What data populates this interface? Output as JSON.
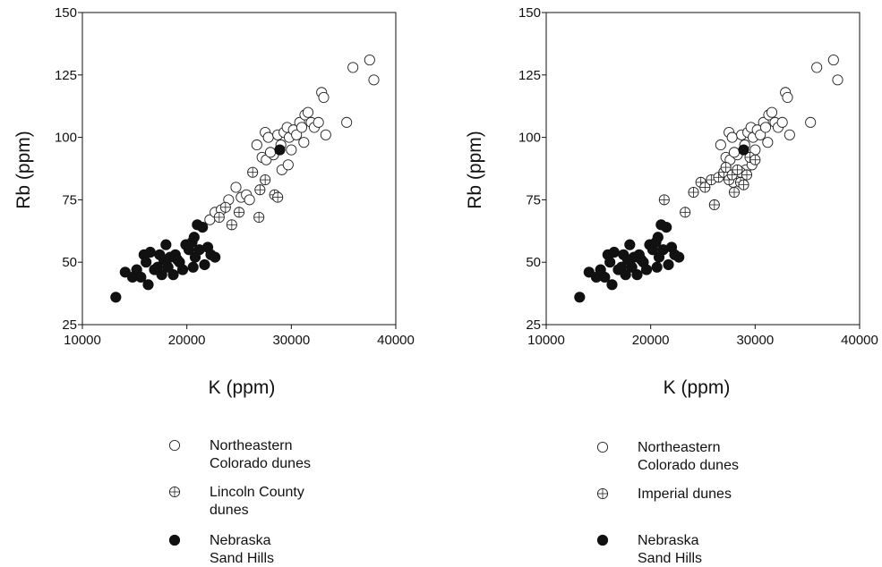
{
  "chart_data": [
    {
      "type": "scatter",
      "xlabel": "K (ppm)",
      "ylabel": "Rb (ppm)",
      "xlim": [
        10000,
        40000
      ],
      "ylim": [
        25,
        150
      ],
      "xticks": [
        "10000",
        "20000",
        "30000",
        "40000"
      ],
      "yticks": [
        "25",
        "50",
        "75",
        "100",
        "125",
        "150"
      ],
      "grid": false,
      "legend_position": "below",
      "legend": [
        {
          "marker": "open-circle",
          "lines": [
            "Northeastern",
            "Colorado dunes"
          ]
        },
        {
          "marker": "crossed-circle",
          "lines": [
            "Lincoln County",
            "dunes"
          ]
        },
        {
          "marker": "filled-circle",
          "lines": [
            "Nebraska",
            "Sand Hills"
          ]
        }
      ],
      "series": [
        {
          "marker": "open-circle",
          "points": [
            [
              26700,
              97
            ],
            [
              27200,
              92
            ],
            [
              27600,
              91
            ],
            [
              27500,
              102
            ],
            [
              27800,
              100
            ],
            [
              28300,
              93
            ],
            [
              28700,
              101
            ],
            [
              29000,
              97
            ],
            [
              29100,
              87
            ],
            [
              29300,
              102
            ],
            [
              29600,
              104
            ],
            [
              29800,
              100
            ],
            [
              30000,
              95
            ],
            [
              30200,
              103
            ],
            [
              29700,
              89
            ],
            [
              30500,
              101
            ],
            [
              30800,
              106
            ],
            [
              31000,
              104
            ],
            [
              31200,
              98
            ],
            [
              31300,
              109
            ],
            [
              31600,
              110
            ],
            [
              31900,
              106
            ],
            [
              32200,
              104
            ],
            [
              32600,
              106
            ],
            [
              32900,
              118
            ],
            [
              33300,
              101
            ],
            [
              33100,
              116
            ],
            [
              35300,
              106
            ],
            [
              35900,
              128
            ],
            [
              37500,
              131
            ],
            [
              37900,
              123
            ],
            [
              22200,
              67
            ],
            [
              22700,
              70
            ],
            [
              23300,
              71
            ],
            [
              24000,
              75
            ],
            [
              24700,
              80
            ],
            [
              25200,
              76
            ],
            [
              25700,
              77
            ],
            [
              28000,
              94
            ],
            [
              26000,
              75
            ]
          ]
        },
        {
          "marker": "crossed-circle",
          "points": [
            [
              23100,
              68
            ],
            [
              23700,
              72
            ],
            [
              24300,
              65
            ],
            [
              25000,
              70
            ],
            [
              26300,
              86
            ],
            [
              26900,
              68
            ],
            [
              27000,
              79
            ],
            [
              27500,
              83
            ],
            [
              28400,
              77
            ],
            [
              28700,
              76
            ]
          ]
        },
        {
          "marker": "filled-circle",
          "points": [
            [
              13200,
              36
            ],
            [
              14100,
              46
            ],
            [
              14800,
              44
            ],
            [
              15200,
              47
            ],
            [
              15600,
              44
            ],
            [
              15900,
              53
            ],
            [
              16100,
              50
            ],
            [
              16300,
              41
            ],
            [
              16500,
              54
            ],
            [
              16900,
              47
            ],
            [
              17200,
              48
            ],
            [
              17400,
              53
            ],
            [
              17600,
              45
            ],
            [
              17800,
              51
            ],
            [
              18000,
              57
            ],
            [
              18200,
              48
            ],
            [
              18400,
              52
            ],
            [
              18700,
              45
            ],
            [
              18900,
              53
            ],
            [
              19100,
              51
            ],
            [
              19300,
              50
            ],
            [
              19600,
              47
            ],
            [
              19900,
              57
            ],
            [
              20200,
              55
            ],
            [
              20500,
              58
            ],
            [
              20600,
              48
            ],
            [
              20700,
              60
            ],
            [
              20800,
              52
            ],
            [
              21000,
              65
            ],
            [
              21200,
              55
            ],
            [
              21500,
              64
            ],
            [
              21700,
              49
            ],
            [
              22000,
              56
            ],
            [
              22300,
              53
            ],
            [
              22700,
              52
            ],
            [
              28900,
              95
            ]
          ]
        }
      ]
    },
    {
      "type": "scatter",
      "xlabel": "K (ppm)",
      "ylabel": "Rb (ppm)",
      "xlim": [
        10000,
        40000
      ],
      "ylim": [
        25,
        150
      ],
      "xticks": [
        "10000",
        "20000",
        "30000",
        "40000"
      ],
      "yticks": [
        "25",
        "50",
        "75",
        "100",
        "125",
        "150"
      ],
      "grid": false,
      "legend_position": "below",
      "legend": [
        {
          "marker": "open-circle",
          "lines": [
            "Northeastern",
            "Colorado dunes"
          ]
        },
        {
          "marker": "crossed-circle",
          "lines": [
            "Imperial dunes"
          ]
        },
        {
          "marker": "filled-circle",
          "lines": [
            "Nebraska",
            "Sand Hills"
          ]
        }
      ],
      "series": [
        {
          "marker": "open-circle",
          "points": [
            [
              26700,
              97
            ],
            [
              27200,
              92
            ],
            [
              27600,
              91
            ],
            [
              27500,
              102
            ],
            [
              27800,
              100
            ],
            [
              28300,
              93
            ],
            [
              28700,
              101
            ],
            [
              29000,
              97
            ],
            [
              29100,
              87
            ],
            [
              29300,
              102
            ],
            [
              29600,
              104
            ],
            [
              29800,
              100
            ],
            [
              30000,
              95
            ],
            [
              30200,
              103
            ],
            [
              29700,
              89
            ],
            [
              30500,
              101
            ],
            [
              30800,
              106
            ],
            [
              31000,
              104
            ],
            [
              31200,
              98
            ],
            [
              31300,
              109
            ],
            [
              31600,
              110
            ],
            [
              31900,
              106
            ],
            [
              32200,
              104
            ],
            [
              32600,
              106
            ],
            [
              32900,
              118
            ],
            [
              33300,
              101
            ],
            [
              33100,
              116
            ],
            [
              35300,
              106
            ],
            [
              35900,
              128
            ],
            [
              37500,
              131
            ],
            [
              37900,
              123
            ],
            [
              28000,
              94
            ],
            [
              27900,
              82
            ],
            [
              28600,
              86
            ]
          ]
        },
        {
          "marker": "crossed-circle",
          "points": [
            [
              21300,
              75
            ],
            [
              23300,
              70
            ],
            [
              24100,
              78
            ],
            [
              24800,
              82
            ],
            [
              25200,
              80
            ],
            [
              25800,
              83
            ],
            [
              26100,
              73
            ],
            [
              26500,
              84
            ],
            [
              27000,
              86
            ],
            [
              27200,
              88
            ],
            [
              27500,
              83
            ],
            [
              27800,
              85
            ],
            [
              28000,
              78
            ],
            [
              28300,
              87
            ],
            [
              28600,
              82
            ],
            [
              28900,
              81
            ],
            [
              29200,
              85
            ],
            [
              29500,
              92
            ],
            [
              30000,
              91
            ]
          ]
        },
        {
          "marker": "filled-circle",
          "points": [
            [
              13200,
              36
            ],
            [
              14100,
              46
            ],
            [
              14800,
              44
            ],
            [
              15200,
              47
            ],
            [
              15600,
              44
            ],
            [
              15900,
              53
            ],
            [
              16100,
              50
            ],
            [
              16300,
              41
            ],
            [
              16500,
              54
            ],
            [
              16900,
              47
            ],
            [
              17200,
              48
            ],
            [
              17400,
              53
            ],
            [
              17600,
              45
            ],
            [
              17800,
              51
            ],
            [
              18000,
              57
            ],
            [
              18200,
              48
            ],
            [
              18400,
              52
            ],
            [
              18700,
              45
            ],
            [
              18900,
              53
            ],
            [
              19100,
              51
            ],
            [
              19300,
              50
            ],
            [
              19600,
              47
            ],
            [
              19900,
              57
            ],
            [
              20200,
              55
            ],
            [
              20500,
              58
            ],
            [
              20600,
              48
            ],
            [
              20700,
              60
            ],
            [
              20800,
              52
            ],
            [
              21000,
              65
            ],
            [
              21200,
              55
            ],
            [
              21500,
              64
            ],
            [
              21700,
              49
            ],
            [
              22000,
              56
            ],
            [
              22300,
              53
            ],
            [
              22700,
              52
            ],
            [
              28900,
              95
            ]
          ]
        }
      ]
    }
  ]
}
